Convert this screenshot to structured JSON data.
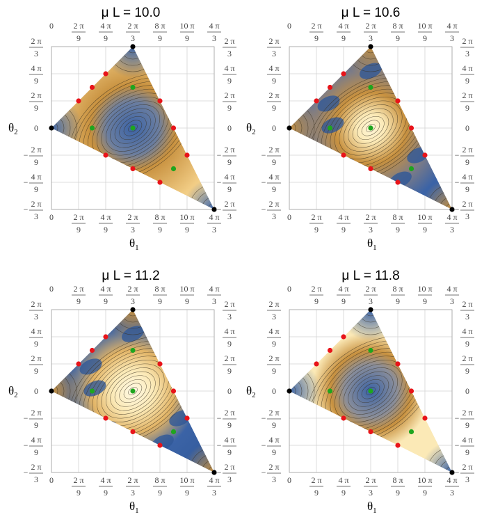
{
  "panels": [
    {
      "id": "p1",
      "title": "μ L = 10.0",
      "variant": "orange",
      "dots": [
        {
          "tx": 0,
          "ty": 0,
          "c": "black"
        },
        {
          "tx": 6,
          "ty": 3,
          "c": "black"
        },
        {
          "tx": 12,
          "ty": -3,
          "c": "black"
        },
        {
          "tx": 2,
          "ty": 1,
          "c": "red"
        },
        {
          "tx": 3,
          "ty": 1.5,
          "c": "red"
        },
        {
          "tx": 4,
          "ty": 2,
          "c": "red"
        },
        {
          "tx": 4,
          "ty": -1,
          "c": "red"
        },
        {
          "tx": 6,
          "ty": -1.5,
          "c": "red"
        },
        {
          "tx": 8,
          "ty": -2,
          "c": "red"
        },
        {
          "tx": 8,
          "ty": 1,
          "c": "red"
        },
        {
          "tx": 9,
          "ty": 0,
          "c": "red"
        },
        {
          "tx": 10,
          "ty": -1,
          "c": "red"
        },
        {
          "tx": 3,
          "ty": 0,
          "c": "green"
        },
        {
          "tx": 6,
          "ty": 1.5,
          "c": "green"
        },
        {
          "tx": 6,
          "ty": 0,
          "c": "green"
        },
        {
          "tx": 9,
          "ty": -1.5,
          "c": "green"
        }
      ]
    },
    {
      "id": "p2",
      "title": "μ L = 10.6",
      "variant": "blue-ring",
      "dots": [
        {
          "tx": 0,
          "ty": 0,
          "c": "black"
        },
        {
          "tx": 6,
          "ty": 3,
          "c": "black"
        },
        {
          "tx": 12,
          "ty": -3,
          "c": "black"
        },
        {
          "tx": 2,
          "ty": 1,
          "c": "red"
        },
        {
          "tx": 3,
          "ty": 1.5,
          "c": "red"
        },
        {
          "tx": 4,
          "ty": 2,
          "c": "red"
        },
        {
          "tx": 4,
          "ty": -1,
          "c": "red"
        },
        {
          "tx": 6,
          "ty": -1.5,
          "c": "red"
        },
        {
          "tx": 8,
          "ty": -2,
          "c": "red"
        },
        {
          "tx": 8,
          "ty": 1,
          "c": "red"
        },
        {
          "tx": 9,
          "ty": 0,
          "c": "red"
        },
        {
          "tx": 10,
          "ty": -1,
          "c": "red"
        },
        {
          "tx": 3,
          "ty": 0,
          "c": "green"
        },
        {
          "tx": 6,
          "ty": 1.5,
          "c": "green"
        },
        {
          "tx": 6,
          "ty": 0,
          "c": "green"
        },
        {
          "tx": 9,
          "ty": -1.5,
          "c": "green"
        }
      ]
    },
    {
      "id": "p3",
      "title": "μ L = 11.2",
      "variant": "blue-ring-light",
      "dots": [
        {
          "tx": 0,
          "ty": 0,
          "c": "black"
        },
        {
          "tx": 6,
          "ty": 3,
          "c": "black"
        },
        {
          "tx": 12,
          "ty": -3,
          "c": "black"
        },
        {
          "tx": 2,
          "ty": 1,
          "c": "red"
        },
        {
          "tx": 3,
          "ty": 1.5,
          "c": "red"
        },
        {
          "tx": 4,
          "ty": 2,
          "c": "red"
        },
        {
          "tx": 4,
          "ty": -1,
          "c": "red"
        },
        {
          "tx": 6,
          "ty": -1.5,
          "c": "red"
        },
        {
          "tx": 8,
          "ty": -2,
          "c": "red"
        },
        {
          "tx": 8,
          "ty": 1,
          "c": "red"
        },
        {
          "tx": 9,
          "ty": 0,
          "c": "red"
        },
        {
          "tx": 10,
          "ty": -1,
          "c": "red"
        },
        {
          "tx": 3,
          "ty": 0,
          "c": "green"
        },
        {
          "tx": 6,
          "ty": 1.5,
          "c": "green"
        },
        {
          "tx": 6,
          "ty": 0,
          "c": "green"
        },
        {
          "tx": 9,
          "ty": -1.5,
          "c": "green"
        }
      ]
    },
    {
      "id": "p4",
      "title": "μ L = 11.8",
      "variant": "cream",
      "dots": [
        {
          "tx": 0,
          "ty": 0,
          "c": "black"
        },
        {
          "tx": 6,
          "ty": 3,
          "c": "black"
        },
        {
          "tx": 12,
          "ty": -3,
          "c": "black"
        },
        {
          "tx": 2,
          "ty": 1,
          "c": "red"
        },
        {
          "tx": 3,
          "ty": 1.5,
          "c": "red"
        },
        {
          "tx": 4,
          "ty": 2,
          "c": "red"
        },
        {
          "tx": 4,
          "ty": -1,
          "c": "red"
        },
        {
          "tx": 6,
          "ty": -1.5,
          "c": "red"
        },
        {
          "tx": 8,
          "ty": -2,
          "c": "red"
        },
        {
          "tx": 8,
          "ty": 1,
          "c": "red"
        },
        {
          "tx": 9,
          "ty": 0,
          "c": "red"
        },
        {
          "tx": 10,
          "ty": -1,
          "c": "red"
        },
        {
          "tx": 3,
          "ty": 0,
          "c": "green"
        },
        {
          "tx": 6,
          "ty": 1.5,
          "c": "green"
        },
        {
          "tx": 6,
          "ty": 0,
          "c": "green"
        },
        {
          "tx": 9,
          "ty": -1.5,
          "c": "green"
        }
      ]
    }
  ],
  "x_ticks": [
    {
      "num": "0",
      "den": ""
    },
    {
      "num": "2 π",
      "den": "9"
    },
    {
      "num": "4 π",
      "den": "9"
    },
    {
      "num": "2 π",
      "den": "3"
    },
    {
      "num": "8 π",
      "den": "9"
    },
    {
      "num": "10 π",
      "den": "9"
    },
    {
      "num": "4 π",
      "den": "3"
    }
  ],
  "y_ticks": [
    {
      "sign": "",
      "num": "2 π",
      "den": "3"
    },
    {
      "sign": "",
      "num": "4 π",
      "den": "9"
    },
    {
      "sign": "",
      "num": "2 π",
      "den": "9"
    },
    {
      "sign": "",
      "num": "0",
      "den": ""
    },
    {
      "sign": "−",
      "num": "2 π",
      "den": "9"
    },
    {
      "sign": "−",
      "num": "4 π",
      "den": "9"
    },
    {
      "sign": "−",
      "num": "2 π",
      "den": "3"
    }
  ],
  "x_label": "θ",
  "x_label_sub": "1",
  "y_label": "θ",
  "y_label_sub": "2",
  "colors": {
    "blue": "#3b63a6",
    "orange": "#c8913f",
    "cream": "#fbe9b6",
    "red": "#e8141a",
    "green": "#1ea51e",
    "black": "#000000"
  }
}
